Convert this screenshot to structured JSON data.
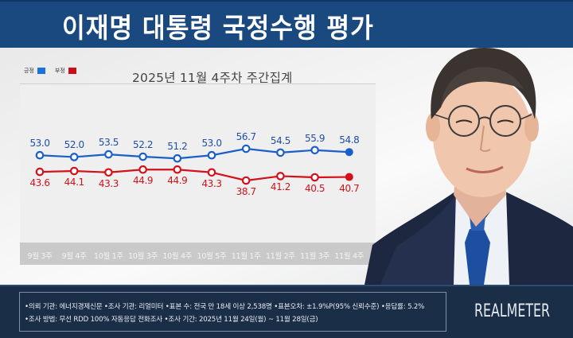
{
  "header": {
    "title": "이재명 대통령 국정수행 평가"
  },
  "legend": {
    "items": [
      {
        "label": "긍정",
        "color": "#1a73d9"
      },
      {
        "label": "부정",
        "color": "#c8101a"
      }
    ]
  },
  "chart_title": "2025년 11월 4주차 주간집계",
  "chart_data": {
    "type": "line",
    "title": "2025년 11월 4주차 주간집계",
    "xlabel": "",
    "ylabel": "",
    "grid": false,
    "legend_position": "top-left",
    "categories": [
      "9월 3주",
      "9월 4주",
      "10월 1주",
      "10월 3주",
      "10월 4주",
      "10월 5주",
      "11월 1주",
      "11월 2주",
      "11월 3주",
      "11월 4주"
    ],
    "series": [
      {
        "name": "긍정",
        "color": "#1a5fc8",
        "values": [
          53.0,
          52.0,
          53.5,
          52.2,
          51.2,
          53.0,
          56.7,
          54.5,
          55.9,
          54.8
        ]
      },
      {
        "name": "부정",
        "color": "#d4111a",
        "values": [
          43.6,
          44.1,
          43.3,
          44.9,
          44.9,
          43.3,
          38.7,
          41.2,
          40.5,
          40.7
        ]
      }
    ],
    "value_labels": {
      "긍정": [
        "53.0",
        "52.0",
        "53.5",
        "52.2",
        "51.2",
        "53.0",
        "56.7",
        "54.5",
        "55.9",
        "54.8"
      ],
      "부정": [
        "43.6",
        "44.1",
        "43.3",
        "44.9",
        "44.9",
        "43.3",
        "38.7",
        "41.2",
        "40.5",
        "40.7"
      ]
    }
  },
  "footer": {
    "line1": "•의뢰 기관: 에너지경제신문 •조사 기관: 리얼미터 •표본 수: 전국 만 18세 이상 2,538명 •표본오차: ±1.9%P(95% 신뢰수준) •응답률: 5.2%",
    "line2": "•조사 방법: 무선 RDD 100% 자동응답 전화조사 •조사 기간: 2025년 11월 24일(월) ~ 11월 28일(금)",
    "brand": "REALMETER"
  }
}
